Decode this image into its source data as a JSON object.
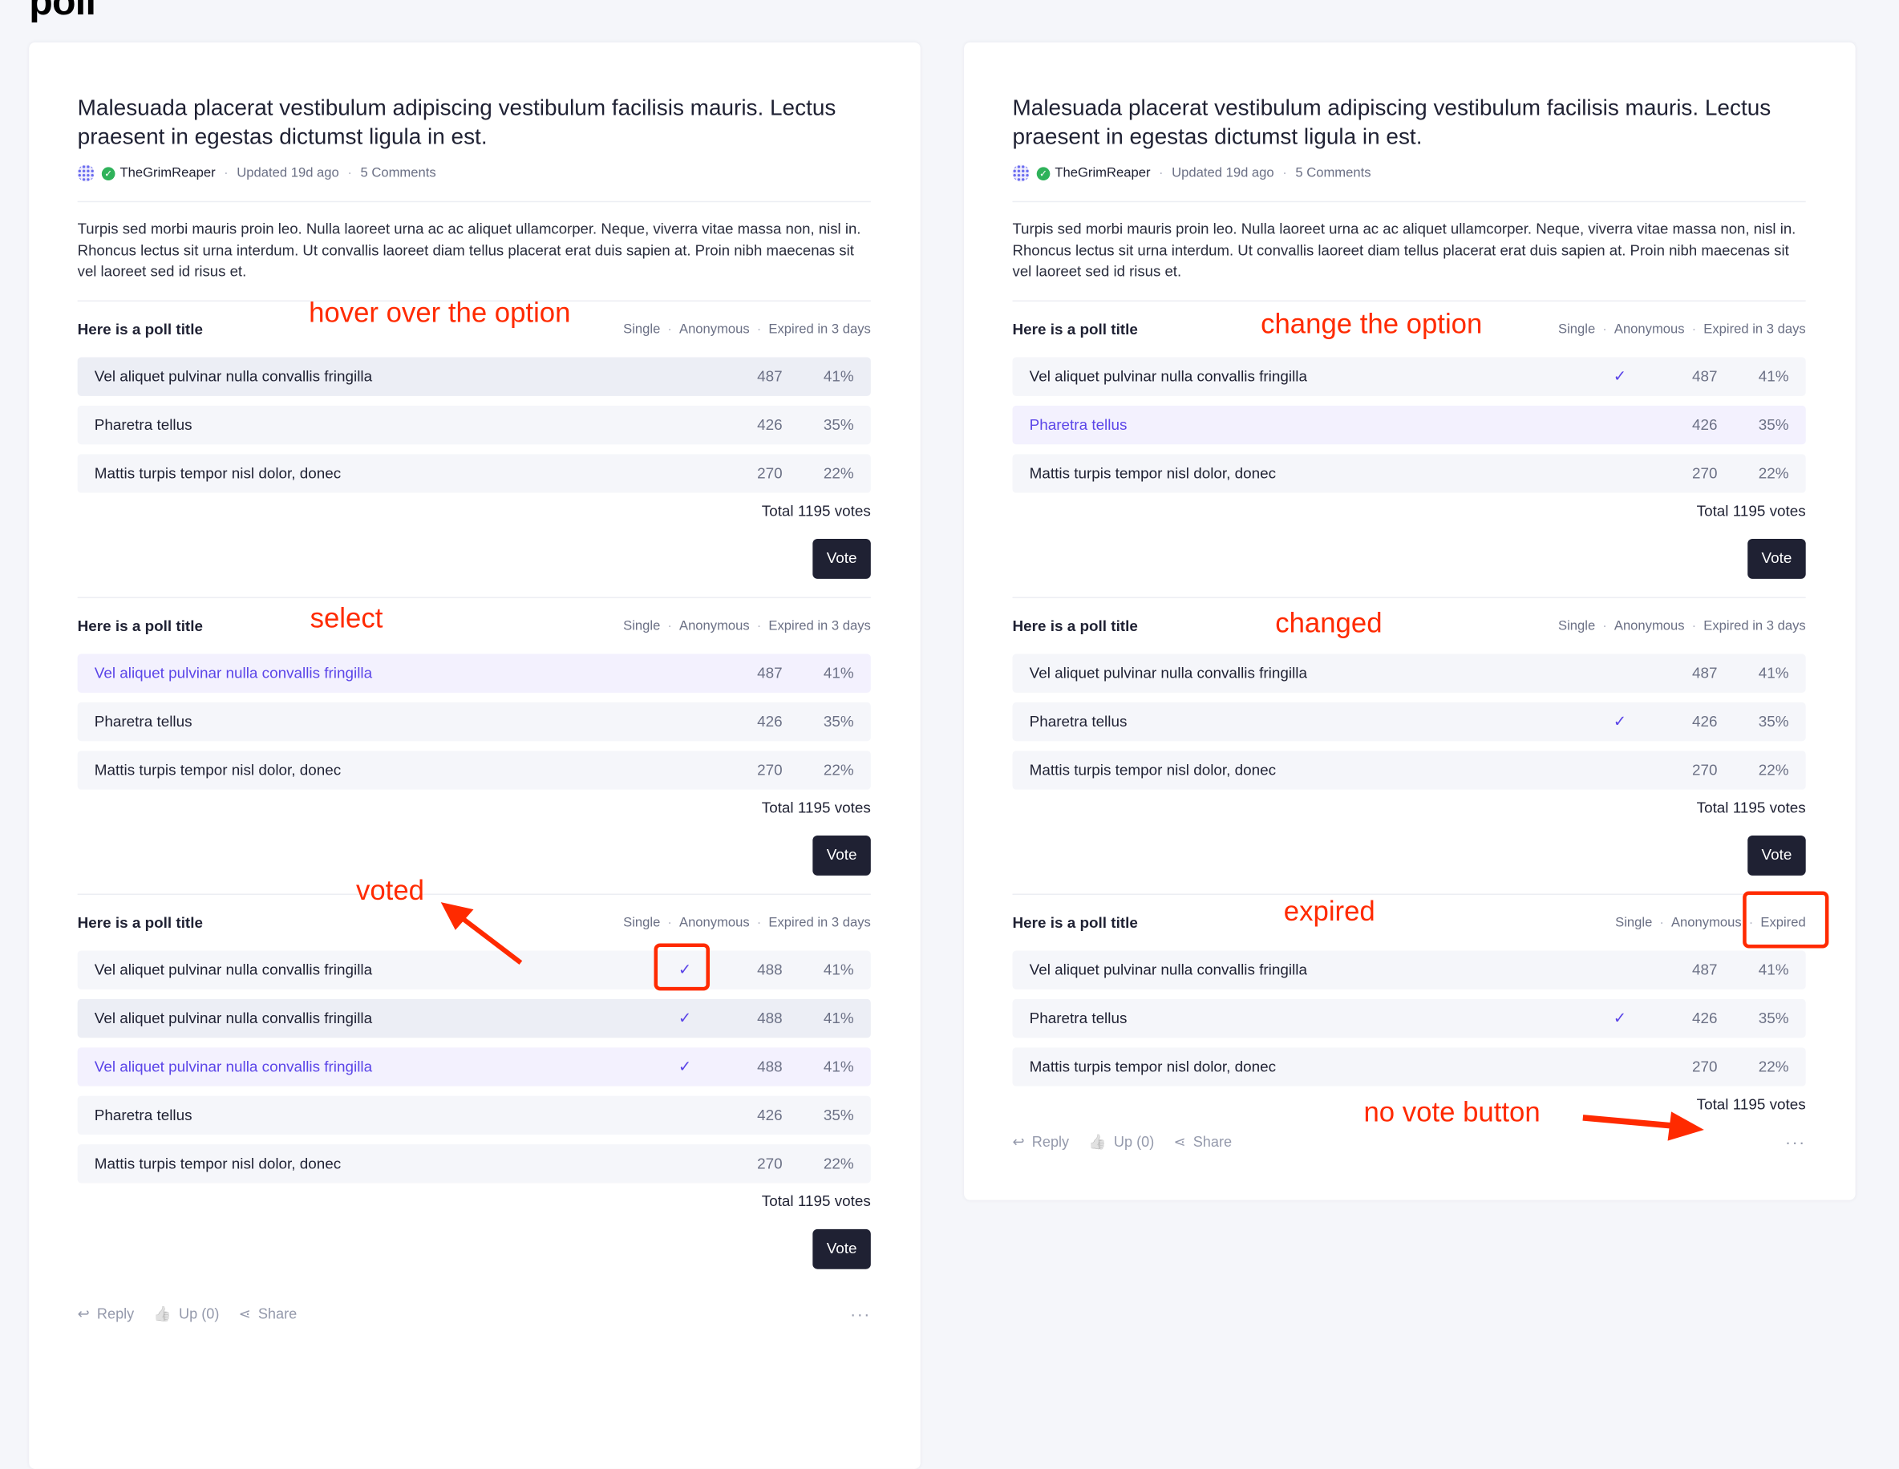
{
  "page": {
    "title": "poll"
  },
  "accent_color": "#5b45e8",
  "annotation_color": "#ff2a00",
  "cards": [
    {
      "id": "left",
      "post": {
        "title": "Malesuada placerat vestibulum adipiscing vestibulum facilisis mauris. Lectus praesent in egestas dictumst ligula in est.",
        "author": "TheGrimReaper",
        "updated": "Updated 19d ago",
        "comments": "5 Comments",
        "body": "Turpis sed morbi mauris proin leo. Nulla laoreet urna ac ac aliquet ullamcorper. Neque, viverra vitae massa non, nisl in. Rhoncus lectus sit urna interdum. Ut convallis laoreet diam tellus placerat erat duis sapien at. Proin nibh maecenas sit vel laoreet sed id risus et."
      },
      "polls": [
        {
          "title": "Here is a poll title",
          "meta": [
            "Single",
            "Anonymous",
            "Expired in 3 days"
          ],
          "options": [
            {
              "label": "Vel aliquet pulvinar nulla convallis fringilla",
              "count": "487",
              "percent": "41%",
              "state": "hover",
              "checked": false
            },
            {
              "label": "Pharetra tellus",
              "count": "426",
              "percent": "35%",
              "state": "normal",
              "checked": false
            },
            {
              "label": "Mattis turpis tempor nisl dolor, donec",
              "count": "270",
              "percent": "22%",
              "state": "normal",
              "checked": false
            }
          ],
          "total": "Total 1195 votes",
          "vote_label": "Vote",
          "annotation": "hover over the option"
        },
        {
          "title": "Here is a poll title",
          "meta": [
            "Single",
            "Anonymous",
            "Expired in 3 days"
          ],
          "options": [
            {
              "label": "Vel aliquet pulvinar nulla convallis fringilla",
              "count": "487",
              "percent": "41%",
              "state": "selected",
              "checked": false
            },
            {
              "label": "Pharetra tellus",
              "count": "426",
              "percent": "35%",
              "state": "normal",
              "checked": false
            },
            {
              "label": "Mattis turpis tempor nisl dolor, donec",
              "count": "270",
              "percent": "22%",
              "state": "normal",
              "checked": false
            }
          ],
          "total": "Total 1195 votes",
          "vote_label": "Vote",
          "annotation": "select"
        },
        {
          "title": "Here is a poll title",
          "meta": [
            "Single",
            "Anonymous",
            "Expired in 3 days"
          ],
          "options": [
            {
              "label": "Vel aliquet pulvinar nulla convallis fringilla",
              "count": "488",
              "percent": "41%",
              "state": "normal",
              "checked": true
            },
            {
              "label": "Vel aliquet pulvinar nulla convallis fringilla",
              "count": "488",
              "percent": "41%",
              "state": "hover",
              "checked": true
            },
            {
              "label": "Vel aliquet pulvinar nulla convallis fringilla",
              "count": "488",
              "percent": "41%",
              "state": "selected",
              "checked": true
            },
            {
              "label": "Pharetra tellus",
              "count": "426",
              "percent": "35%",
              "state": "normal",
              "checked": false
            },
            {
              "label": "Mattis turpis tempor nisl dolor, donec",
              "count": "270",
              "percent": "22%",
              "state": "normal",
              "checked": false
            }
          ],
          "total": "Total 1195 votes",
          "vote_label": "Vote",
          "annotation": "voted"
        }
      ],
      "footer": {
        "reply": "Reply",
        "up": "Up (0)",
        "share": "Share",
        "more": "···"
      }
    },
    {
      "id": "right",
      "post": {
        "title": "Malesuada placerat vestibulum adipiscing vestibulum facilisis mauris. Lectus praesent in egestas dictumst ligula in est.",
        "author": "TheGrimReaper",
        "updated": "Updated 19d ago",
        "comments": "5 Comments",
        "body": "Turpis sed morbi mauris proin leo. Nulla laoreet urna ac ac aliquet ullamcorper. Neque, viverra vitae massa non, nisl in. Rhoncus lectus sit urna interdum. Ut convallis laoreet diam tellus placerat erat duis sapien at. Proin nibh maecenas sit vel laoreet sed id risus et."
      },
      "polls": [
        {
          "title": "Here is a poll title",
          "meta": [
            "Single",
            "Anonymous",
            "Expired in 3 days"
          ],
          "options": [
            {
              "label": "Vel aliquet pulvinar nulla convallis fringilla",
              "count": "487",
              "percent": "41%",
              "state": "normal",
              "checked": true
            },
            {
              "label": "Pharetra tellus",
              "count": "426",
              "percent": "35%",
              "state": "selected",
              "checked": false
            },
            {
              "label": "Mattis turpis tempor nisl dolor, donec",
              "count": "270",
              "percent": "22%",
              "state": "normal",
              "checked": false
            }
          ],
          "total": "Total 1195 votes",
          "vote_label": "Vote",
          "annotation": "change the option"
        },
        {
          "title": "Here is a poll title",
          "meta": [
            "Single",
            "Anonymous",
            "Expired in 3 days"
          ],
          "options": [
            {
              "label": "Vel aliquet pulvinar nulla convallis fringilla",
              "count": "487",
              "percent": "41%",
              "state": "normal",
              "checked": false
            },
            {
              "label": "Pharetra tellus",
              "count": "426",
              "percent": "35%",
              "state": "normal",
              "checked": true
            },
            {
              "label": "Mattis turpis tempor nisl dolor, donec",
              "count": "270",
              "percent": "22%",
              "state": "normal",
              "checked": false
            }
          ],
          "total": "Total 1195 votes",
          "vote_label": "Vote",
          "annotation": "changed"
        },
        {
          "title": "Here is a poll title",
          "meta": [
            "Single",
            "Anonymous",
            "Expired"
          ],
          "options": [
            {
              "label": "Vel aliquet pulvinar nulla convallis fringilla",
              "count": "487",
              "percent": "41%",
              "state": "normal",
              "checked": false
            },
            {
              "label": "Pharetra tellus",
              "count": "426",
              "percent": "35%",
              "state": "normal",
              "checked": true
            },
            {
              "label": "Mattis turpis tempor nisl dolor, donec",
              "count": "270",
              "percent": "22%",
              "state": "normal",
              "checked": false
            }
          ],
          "total": "Total 1195 votes",
          "vote_label": null,
          "annotation": "expired"
        }
      ],
      "footer": {
        "reply": "Reply",
        "up": "Up (0)",
        "share": "Share",
        "more": "···"
      },
      "footer_annotation": "no vote button"
    }
  ]
}
